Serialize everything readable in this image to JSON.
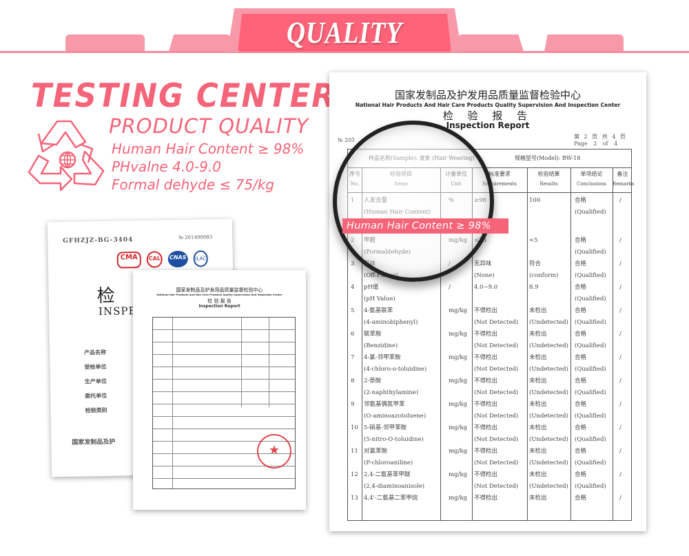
{
  "banner": {
    "title": "QUALITY",
    "color": "#f56478"
  },
  "headline": {
    "title": "TESTING CENTER",
    "subtitle": "PRODUCT QUALITY",
    "specs": [
      "Human Hair Content ≥ 98%",
      "PHvalne 4.0-9.0",
      "Formal dehyde ≤ 75/kg"
    ]
  },
  "highlight": "Human Hair Content ≥ 98%",
  "report": {
    "center_cn": "国家发制品及护发用品质量监督检验中心",
    "center_en": "National Hair Products And Hair Care Products Quality Supervision And Inspection Center",
    "title_cn": "检 验 报 告",
    "title_en": "Inspection Report",
    "page_cn": "第 2 页 共 4 页",
    "page_en": "Page 2 of 4",
    "no": "№ 201",
    "sample": "样品名称(Sample): 发条 (Hair Weaving)",
    "model": "规格型号(Model): BW-18",
    "headers": [
      [
        "序号",
        "No."
      ],
      [
        "检验项目",
        "Items"
      ],
      [
        "计量单位",
        "Unit"
      ],
      [
        "标准要求",
        "Requirements"
      ],
      [
        "检验结果",
        "Results"
      ],
      [
        "单项结论",
        "Conclusions"
      ],
      [
        "备注",
        "Remarks"
      ]
    ],
    "rows": [
      [
        "1",
        "人发含量",
        "(Human Hair Content)",
        "%",
        "≥98",
        "",
        "100",
        "",
        "合格",
        "(Qualified)",
        "/"
      ],
      [
        "2",
        "甲醛",
        "(Formaldehyde)",
        "mg/kg",
        "≤75",
        "",
        "<5",
        "",
        "合格",
        "(Qualified)",
        "/"
      ],
      [
        "3",
        "异味",
        "(Off-Flavor)",
        "/",
        "无异味",
        "(None)",
        "符合",
        "(conform)",
        "合格",
        "(Qualified)",
        "/"
      ],
      [
        "4",
        "pH值",
        "(pH Value)",
        "/",
        "4.0~9.0",
        "",
        "8.9",
        "",
        "合格",
        "(Qualified)",
        "/"
      ],
      [
        "5",
        "4-氨基联苯",
        "(4-aminobiphenyl)",
        "mg/kg",
        "不得检出",
        "(Not Detected)",
        "未检出",
        "(Undetected)",
        "合格",
        "(Qualified)",
        "/"
      ],
      [
        "6",
        "联苯胺",
        "(Benzidine)",
        "mg/kg",
        "不得检出",
        "(Not Detected)",
        "未检出",
        "(Undetected)",
        "合格",
        "(Qualified)",
        "/"
      ],
      [
        "7",
        "4-氯-邻甲苯胺",
        "(4-chloro-o-toluidine)",
        "mg/kg",
        "不得检出",
        "(Not Detected)",
        "未检出",
        "(Undetected)",
        "合格",
        "(Qualified)",
        "/"
      ],
      [
        "8",
        "2-萘胺",
        "(2-naphthylamine)",
        "mg/kg",
        "不得检出",
        "(Not Detected)",
        "未检出",
        "(Undetected)",
        "合格",
        "(Qualified)",
        "/"
      ],
      [
        "9",
        "邻氨基偶氮甲苯",
        "(O-aminoazotoluene)",
        "mg/kg",
        "不得检出",
        "(Not Detected)",
        "未检出",
        "(Undetected)",
        "合格",
        "(Qualified)",
        "/"
      ],
      [
        "10",
        "5-硝基-邻甲苯胺",
        "(5-nitro-O-toluidine)",
        "mg/kg",
        "不得检出",
        "(Not Detected)",
        "未检出",
        "(Undetected)",
        "合格",
        "(Qualified)",
        "/"
      ],
      [
        "11",
        "对氯苯胺",
        "(P-chloroaniline)",
        "mg/kg",
        "不得检出",
        "(Not Detected)",
        "未检出",
        "(Undetected)",
        "合格",
        "(Qualified)",
        "/"
      ],
      [
        "12",
        "2,4-二氨基苯甲醚",
        "(2,4-diaminoanisole)",
        "mg/kg",
        "不得检出",
        "(Not Detected)",
        "未检出",
        "(Undetected)",
        "合格",
        "(Qualified)",
        "/"
      ],
      [
        "13",
        "4,4'-二氨基二苯甲烷",
        "",
        "mg/kg",
        "不得检出",
        "",
        "未检出",
        "",
        "合格",
        "",
        "/"
      ]
    ]
  },
  "cover_doc": {
    "code": "GFHZJZ-BG-3404",
    "no": "№ 201490083",
    "title_cn": "检 验",
    "title_en": "INSPECT",
    "logos": [
      "CMA",
      "CAL",
      "CNAS",
      "ILAC"
    ],
    "logo_colors": [
      "#d8262c",
      "#d8262c",
      "#1f4fa0",
      "#1f4fa0"
    ],
    "fields": [
      "产品名称",
      "受检单位",
      "生产单位",
      "委托单位",
      "检验类别"
    ],
    "footer": "国家发制品及护"
  },
  "front_doc": {
    "center_cn": "国家发制品及护发用品质量监督检验中心",
    "center_en": "National Hair Products And Hair Care Products Quality Supervision And Inspection Center",
    "title_cn": "检 验 报 告",
    "title_en": "Inspection Report",
    "stamp_color": "#d8262c"
  }
}
